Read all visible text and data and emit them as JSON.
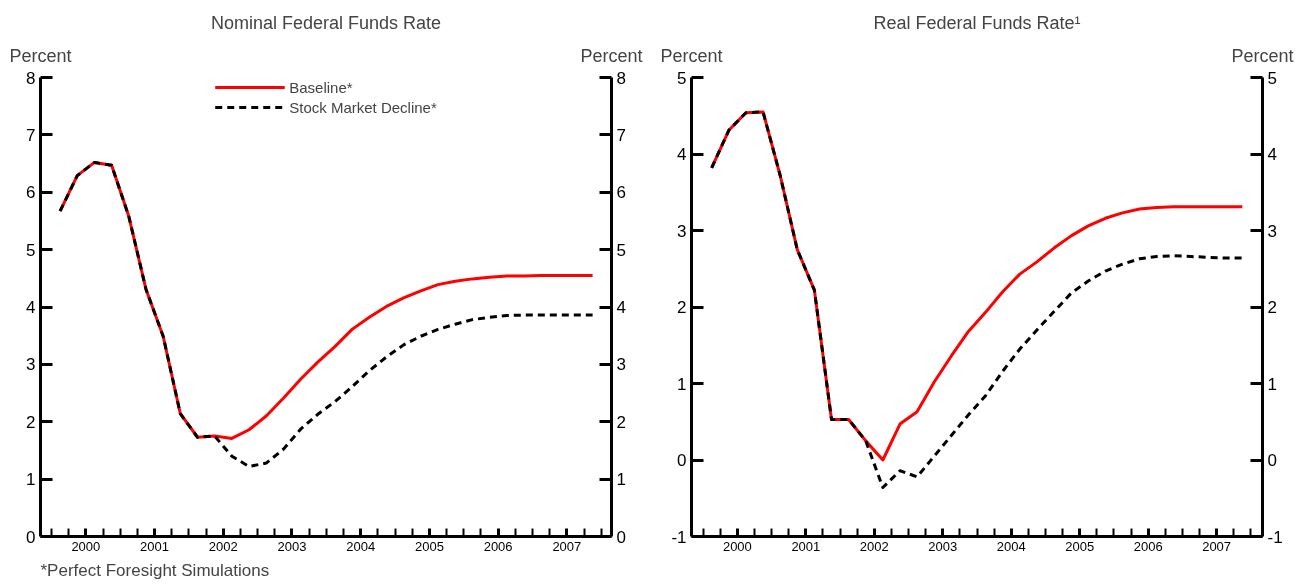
{
  "chart_data": [
    {
      "type": "line",
      "title": "Nominal Federal Funds Rate",
      "ylabel": "Percent",
      "y2label": "Percent",
      "x": [
        2000.125,
        2000.375,
        2000.625,
        2000.875,
        2001.125,
        2001.375,
        2001.625,
        2001.875,
        2002.125,
        2002.375,
        2002.625,
        2002.875,
        2003.125,
        2003.375,
        2003.625,
        2003.875,
        2004.125,
        2004.375,
        2004.625,
        2004.875,
        2005.125,
        2005.375,
        2005.625,
        2005.875,
        2006.125,
        2006.375,
        2006.625,
        2006.875,
        2007.125,
        2007.375,
        2007.625,
        2007.875
      ],
      "series": [
        {
          "name": "Baseline*",
          "color": "#ff0000",
          "line_style": "solid",
          "values": [
            5.67,
            6.29,
            6.52,
            6.47,
            5.58,
            4.31,
            3.49,
            2.14,
            1.73,
            1.75,
            1.71,
            1.86,
            2.1,
            2.41,
            2.74,
            3.04,
            3.31,
            3.61,
            3.82,
            4.01,
            4.16,
            4.28,
            4.39,
            4.45,
            4.49,
            4.52,
            4.54,
            4.54,
            4.55,
            4.55,
            4.55,
            4.55
          ]
        },
        {
          "name": "Stock Market Decline*",
          "color": "#000000",
          "line_style": "dashed",
          "values": [
            5.67,
            6.29,
            6.52,
            6.47,
            5.58,
            4.31,
            3.49,
            2.14,
            1.73,
            1.75,
            1.4,
            1.22,
            1.28,
            1.52,
            1.87,
            2.13,
            2.35,
            2.61,
            2.89,
            3.13,
            3.34,
            3.49,
            3.61,
            3.7,
            3.78,
            3.82,
            3.85,
            3.86,
            3.86,
            3.86,
            3.86,
            3.86
          ]
        }
      ],
      "xlim": [
        1999.84,
        2008.15
      ],
      "xticks": [
        {
          "value": 2000,
          "label": null
        },
        {
          "value": 2000.25,
          "label": null
        },
        {
          "value": 2000.5,
          "label": "2000"
        },
        {
          "value": 2000.75,
          "label": null
        },
        {
          "value": 2001,
          "label": null
        },
        {
          "value": 2001.25,
          "label": null
        },
        {
          "value": 2001.5,
          "label": "2001"
        },
        {
          "value": 2001.75,
          "label": null
        },
        {
          "value": 2002,
          "label": null
        },
        {
          "value": 2002.25,
          "label": null
        },
        {
          "value": 2002.5,
          "label": "2002"
        },
        {
          "value": 2002.75,
          "label": null
        },
        {
          "value": 2003,
          "label": null
        },
        {
          "value": 2003.25,
          "label": null
        },
        {
          "value": 2003.5,
          "label": "2003"
        },
        {
          "value": 2003.75,
          "label": null
        },
        {
          "value": 2004,
          "label": null
        },
        {
          "value": 2004.25,
          "label": null
        },
        {
          "value": 2004.5,
          "label": "2004"
        },
        {
          "value": 2004.75,
          "label": null
        },
        {
          "value": 2005,
          "label": null
        },
        {
          "value": 2005.25,
          "label": null
        },
        {
          "value": 2005.5,
          "label": "2005"
        },
        {
          "value": 2005.75,
          "label": null
        },
        {
          "value": 2006,
          "label": null
        },
        {
          "value": 2006.25,
          "label": null
        },
        {
          "value": 2006.5,
          "label": "2006"
        },
        {
          "value": 2006.75,
          "label": null
        },
        {
          "value": 2007,
          "label": null
        },
        {
          "value": 2007.25,
          "label": null
        },
        {
          "value": 2007.5,
          "label": "2007"
        },
        {
          "value": 2007.75,
          "label": null
        },
        {
          "value": 2008,
          "label": null
        }
      ],
      "ylim": [
        0,
        8
      ],
      "yticks": [
        0,
        1,
        2,
        3,
        4,
        5,
        6,
        7,
        8
      ],
      "y2lim": [
        0,
        8
      ],
      "y2ticks": [
        0,
        1,
        2,
        3,
        4,
        5,
        6,
        7,
        8
      ],
      "grid": false,
      "legend": "top",
      "marker": "none",
      "annotations": [
        "*Perfect Foresight Simulations"
      ]
    },
    {
      "type": "line",
      "title": "Real Federal Funds Rate¹",
      "ylabel": "Percent",
      "y2label": "Percent",
      "x": [
        2000.125,
        2000.375,
        2000.625,
        2000.875,
        2001.125,
        2001.375,
        2001.625,
        2001.875,
        2002.125,
        2002.375,
        2002.625,
        2002.875,
        2003.125,
        2003.375,
        2003.625,
        2003.875,
        2004.125,
        2004.375,
        2004.625,
        2004.875,
        2005.125,
        2005.375,
        2005.625,
        2005.875,
        2006.125,
        2006.375,
        2006.625,
        2006.875,
        2007.125,
        2007.375,
        2007.625,
        2007.875
      ],
      "series": [
        {
          "color": "#ff0000",
          "line_style": "solid",
          "values": [
            3.82,
            4.31,
            4.54,
            4.55,
            3.72,
            2.75,
            2.22,
            0.53,
            0.53,
            0.25,
            0.0,
            0.47,
            0.63,
            1.02,
            1.36,
            1.68,
            1.93,
            2.2,
            2.43,
            2.59,
            2.77,
            2.93,
            3.06,
            3.16,
            3.23,
            3.28,
            3.3,
            3.31,
            3.31,
            3.31,
            3.31,
            3.31
          ]
        },
        {
          "color": "#000000",
          "line_style": "dashed",
          "values": [
            3.82,
            4.31,
            4.54,
            4.55,
            3.72,
            2.75,
            2.22,
            0.53,
            0.53,
            0.25,
            -0.36,
            -0.14,
            -0.22,
            0.05,
            0.32,
            0.59,
            0.84,
            1.16,
            1.45,
            1.7,
            1.94,
            2.18,
            2.34,
            2.47,
            2.56,
            2.63,
            2.66,
            2.67,
            2.66,
            2.65,
            2.64,
            2.64
          ]
        }
      ],
      "xlim": [
        1999.83,
        2008.17
      ],
      "xticks": [
        {
          "value": 2000,
          "label": null
        },
        {
          "value": 2000.25,
          "label": null
        },
        {
          "value": 2000.5,
          "label": "2000"
        },
        {
          "value": 2000.75,
          "label": null
        },
        {
          "value": 2001,
          "label": null
        },
        {
          "value": 2001.25,
          "label": null
        },
        {
          "value": 2001.5,
          "label": "2001"
        },
        {
          "value": 2001.75,
          "label": null
        },
        {
          "value": 2002,
          "label": null
        },
        {
          "value": 2002.25,
          "label": null
        },
        {
          "value": 2002.5,
          "label": "2002"
        },
        {
          "value": 2002.75,
          "label": null
        },
        {
          "value": 2003,
          "label": null
        },
        {
          "value": 2003.25,
          "label": null
        },
        {
          "value": 2003.5,
          "label": "2003"
        },
        {
          "value": 2003.75,
          "label": null
        },
        {
          "value": 2004,
          "label": null
        },
        {
          "value": 2004.25,
          "label": null
        },
        {
          "value": 2004.5,
          "label": "2004"
        },
        {
          "value": 2004.75,
          "label": null
        },
        {
          "value": 2005,
          "label": null
        },
        {
          "value": 2005.25,
          "label": null
        },
        {
          "value": 2005.5,
          "label": "2005"
        },
        {
          "value": 2005.75,
          "label": null
        },
        {
          "value": 2006,
          "label": null
        },
        {
          "value": 2006.25,
          "label": null
        },
        {
          "value": 2006.5,
          "label": "2006"
        },
        {
          "value": 2006.75,
          "label": null
        },
        {
          "value": 2007,
          "label": null
        },
        {
          "value": 2007.25,
          "label": null
        },
        {
          "value": 2007.5,
          "label": "2007"
        },
        {
          "value": 2007.75,
          "label": null
        },
        {
          "value": 2008,
          "label": null
        }
      ],
      "ylim": [
        -1,
        5
      ],
      "yticks": [
        -1,
        0,
        1,
        2,
        3,
        4,
        5
      ],
      "y2lim": [
        -1,
        5
      ],
      "y2ticks": [
        -1,
        0,
        1,
        2,
        3,
        4,
        5
      ],
      "grid": false,
      "legend": false,
      "marker": "none"
    }
  ]
}
